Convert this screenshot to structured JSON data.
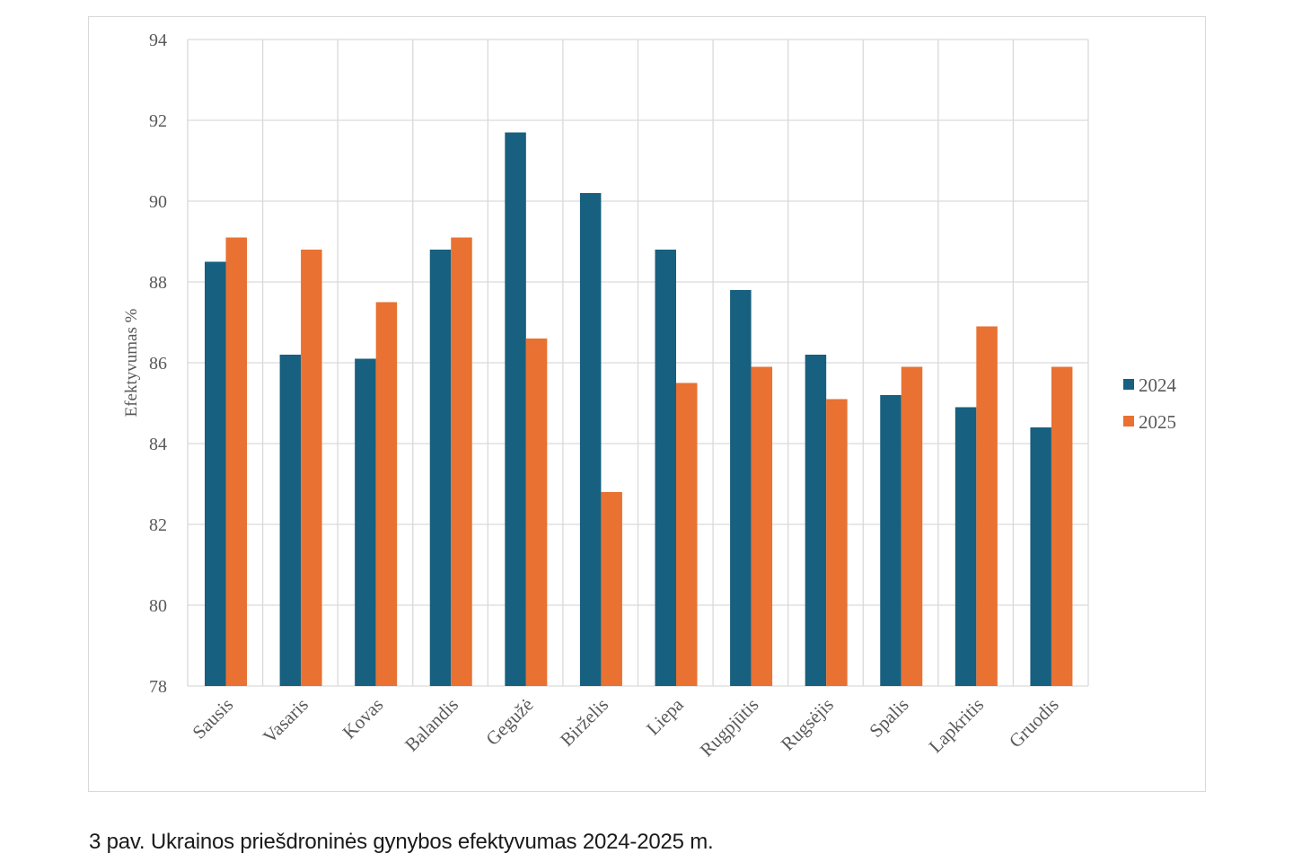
{
  "caption": "3 pav. Ukrainos priešdroninės gynybos efektyvumas 2024-2025 m.",
  "chart_data": {
    "type": "bar",
    "title": "",
    "xlabel": "",
    "ylabel": "Efektyvumas %",
    "ylim": [
      78,
      94
    ],
    "yticks": [
      78,
      80,
      82,
      84,
      86,
      88,
      90,
      92,
      94
    ],
    "grid": true,
    "legend_position": "right",
    "categories": [
      "Sausis",
      "Vasaris",
      "Kovas",
      "Balandis",
      "Gegužė",
      "Birželis",
      "Liepa",
      "Rugpjūtis",
      "Rugsėjis",
      "Spalis",
      "Lapkritis",
      "Gruodis"
    ],
    "series": [
      {
        "name": "2024",
        "color": "#17607f",
        "values": [
          88.5,
          86.2,
          86.1,
          88.8,
          91.7,
          90.2,
          88.8,
          87.8,
          86.2,
          85.2,
          84.9,
          84.4
        ]
      },
      {
        "name": "2025",
        "color": "#e97132",
        "values": [
          89.1,
          88.8,
          87.5,
          89.1,
          86.6,
          82.8,
          85.5,
          85.9,
          85.1,
          85.9,
          86.9,
          85.9
        ]
      }
    ]
  }
}
